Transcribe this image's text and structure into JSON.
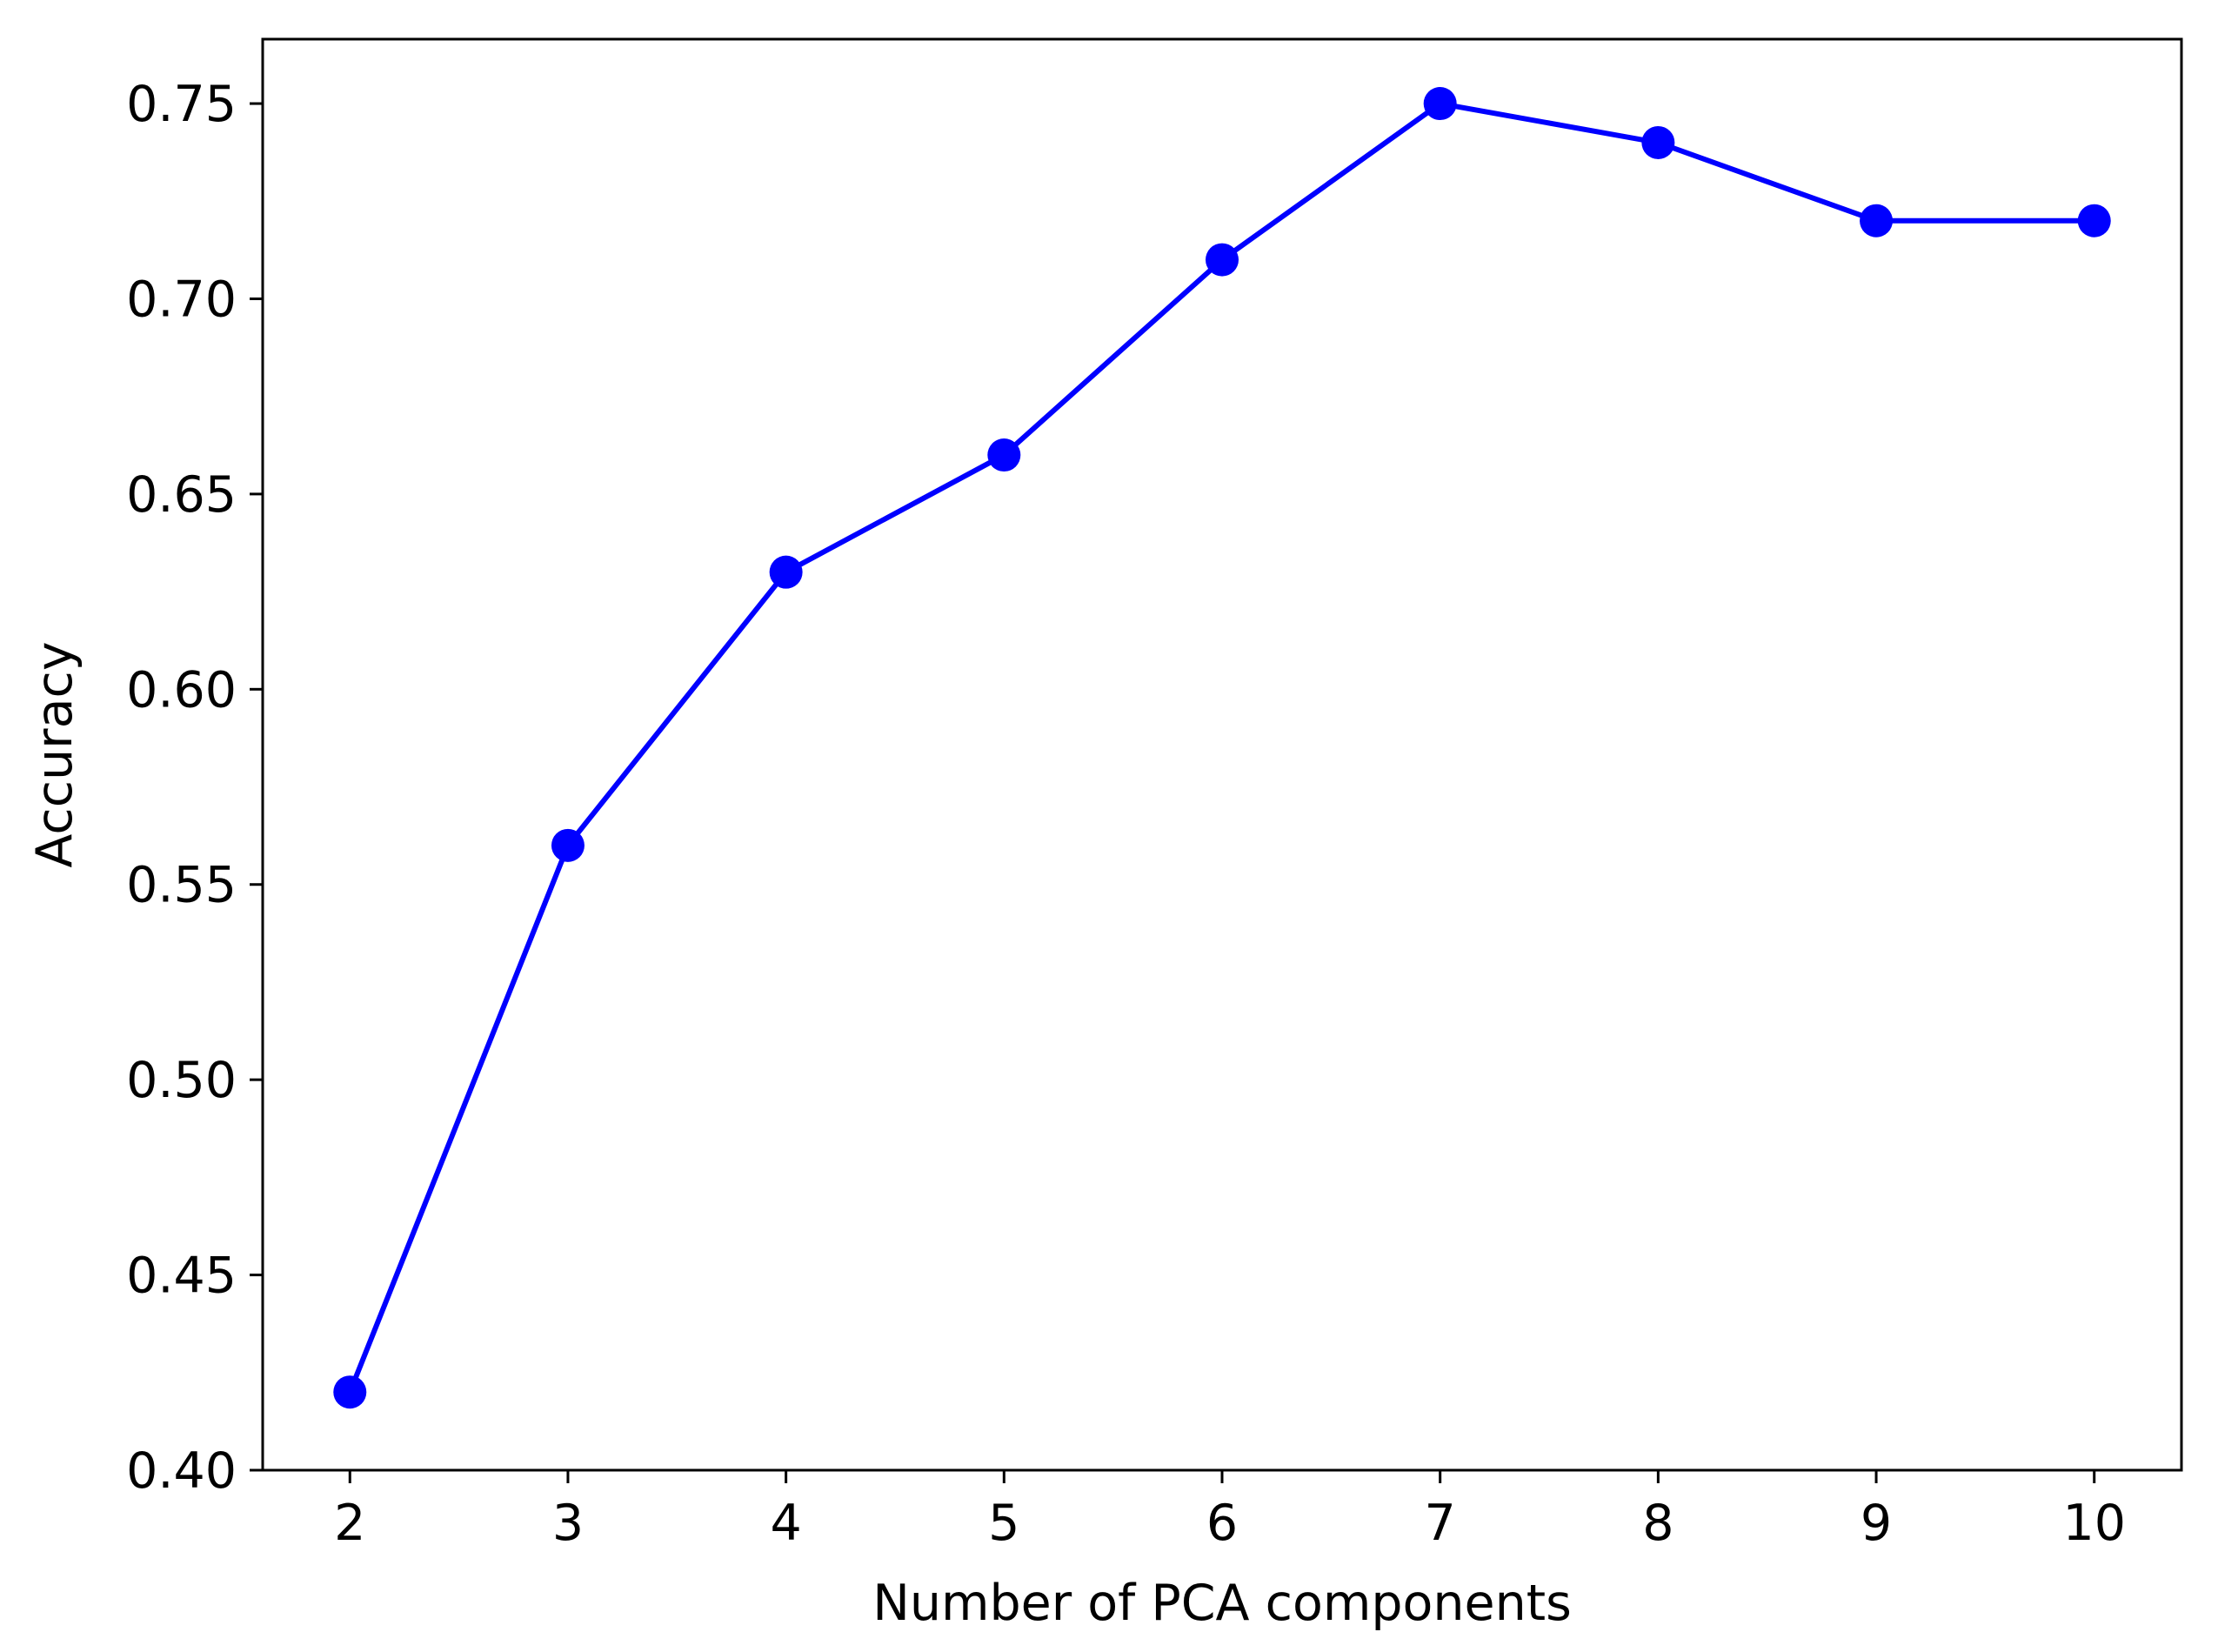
{
  "chart_data": {
    "type": "line",
    "title": "",
    "xlabel": "Number of PCA components",
    "ylabel": "Accuracy",
    "x": [
      2,
      3,
      4,
      5,
      6,
      7,
      8,
      9,
      10
    ],
    "series": [
      {
        "values": [
          0.42,
          0.56,
          0.63,
          0.66,
          0.71,
          0.75,
          0.74,
          0.72,
          0.72
        ],
        "color": "#0000ff",
        "marker": "circle"
      }
    ],
    "xticks": [
      2,
      3,
      4,
      5,
      6,
      7,
      8,
      9,
      10
    ],
    "xtick_labels": [
      "2",
      "3",
      "4",
      "5",
      "6",
      "7",
      "8",
      "9",
      "10"
    ],
    "yticks": [
      0.4,
      0.45,
      0.5,
      0.55,
      0.6,
      0.65,
      0.7,
      0.75
    ],
    "ytick_labels": [
      "0.40",
      "0.45",
      "0.50",
      "0.55",
      "0.60",
      "0.65",
      "0.70",
      "0.75"
    ],
    "xlim": [
      1.6,
      10.4
    ],
    "ylim": [
      0.4,
      0.7665
    ],
    "grid": false,
    "legend": "none"
  }
}
